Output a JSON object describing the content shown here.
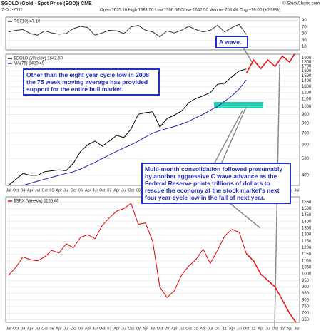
{
  "header": {
    "title": "$GOLD (Gold - Spot Price (EOD)) CME",
    "date": "7-Oct-2011",
    "quote": "Open 1625.10  High 1681.50  Low 1596.60  Close 1642.50  Volume 708.4K  Chg +16.00 (+0.98%)",
    "credit": "© StockCharts.com"
  },
  "chart_data": [
    {
      "type": "line",
      "ylim": [
        0,
        100
      ],
      "yticks": [
        10,
        30,
        50,
        70,
        90
      ],
      "grid": true,
      "series": [
        {
          "name": "RSI(10) 47.10",
          "color": "#333333",
          "values": [
            55,
            60,
            62,
            50,
            45,
            58,
            52,
            48,
            50,
            65,
            72,
            68,
            45,
            52,
            60,
            58,
            50,
            70,
            75,
            60,
            55,
            40,
            58,
            52,
            60,
            72,
            62,
            55,
            60,
            75,
            55,
            68,
            78,
            47.1,
            null,
            null,
            null,
            null,
            null,
            null,
            null
          ]
        }
      ]
    },
    {
      "type": "line",
      "log": true,
      "ylim": [
        350,
        2000
      ],
      "yticks": [
        400,
        500,
        600,
        700,
        800,
        900,
        1000,
        1100,
        1200,
        1300,
        1400,
        1500,
        1600,
        1700,
        1800,
        1900
      ],
      "grid": true,
      "categories": [
        "Jul",
        "Oct",
        "04",
        "Apr",
        "Jul",
        "Oct",
        "05",
        "Apr",
        "Jul",
        "Oct",
        "06",
        "Apr",
        "Jul",
        "Oct",
        "07",
        "Apr",
        "Jul",
        "Oct",
        "08",
        "Apr",
        "Jul",
        "Oct",
        "09",
        "Apr",
        "Jul",
        "Oct",
        "10",
        "Apr",
        "Jul",
        "Oct",
        "11",
        "Apr",
        "Jul",
        "Oct",
        "12",
        "Apr",
        "Jul",
        "Oct",
        "13",
        "Apr",
        "Jul"
      ],
      "series": [
        {
          "name": "$GOLD (Weekly) 1642.50",
          "color": "#000000",
          "values": [
            350,
            380,
            410,
            400,
            400,
            420,
            425,
            430,
            425,
            470,
            550,
            600,
            630,
            590,
            630,
            680,
            660,
            740,
            900,
            920,
            930,
            760,
            850,
            890,
            940,
            1050,
            1110,
            1150,
            1200,
            1340,
            1360,
            1480,
            1600,
            1642.5,
            null,
            null,
            null,
            null,
            null,
            null,
            null
          ]
        },
        {
          "name": "MA(75) 1420.49",
          "color": "#1f1fa8",
          "values": [
            330,
            340,
            350,
            360,
            370,
            380,
            390,
            400,
            410,
            420,
            435,
            455,
            475,
            500,
            525,
            550,
            575,
            600,
            630,
            665,
            700,
            725,
            745,
            765,
            790,
            820,
            860,
            900,
            950,
            1000,
            1070,
            1150,
            1260,
            1420.49,
            null,
            null,
            null,
            null,
            null,
            null,
            null
          ]
        },
        {
          "color": "#ee1111",
          "values": [
            null,
            null,
            null,
            null,
            null,
            null,
            null,
            null,
            null,
            null,
            null,
            null,
            null,
            null,
            null,
            null,
            null,
            null,
            null,
            null,
            null,
            null,
            null,
            null,
            null,
            null,
            null,
            null,
            null,
            null,
            null,
            null,
            null,
            1550,
            1850,
            1650,
            1850,
            1700,
            1950,
            1800,
            2100
          ]
        }
      ],
      "annotations": [
        "A wave.",
        "Other than the eight year cycle low in 2008 the 75 week moving average has provided support for the entire bull market.",
        "Multi-month consolidation followed presumably by another aggressive C wave advance as the Federal Reserve prints trillions of dollars to rescue the economy at the stock market's next four year cycle low in the fall of next year."
      ]
    },
    {
      "type": "line",
      "ylim": [
        630,
        1590
      ],
      "yticks": [
        650,
        700,
        750,
        800,
        850,
        900,
        950,
        1000,
        1050,
        1100,
        1150,
        1200,
        1250,
        1300,
        1350,
        1400,
        1450,
        1500,
        1550
      ],
      "grid": true,
      "categories": [
        "Jul",
        "Oct",
        "04",
        "Apr",
        "Jul",
        "Oct",
        "05",
        "Apr",
        "Jul",
        "Oct",
        "06",
        "Apr",
        "Jul",
        "Oct",
        "07",
        "Apr",
        "Jul",
        "Oct",
        "08",
        "Apr",
        "Jul",
        "Oct",
        "09",
        "Apr",
        "Jul",
        "Oct",
        "10",
        "Apr",
        "Jul",
        "Oct",
        "11",
        "Apr",
        "Jul",
        "Oct",
        "12",
        "Apr",
        "Jul",
        "Oct",
        "13",
        "Apr",
        "Jul"
      ],
      "series": [
        {
          "name": "$SPX (Weekly) 1155.46",
          "color": "#e00000",
          "values": [
            990,
            1050,
            1130,
            1110,
            1100,
            1130,
            1180,
            1160,
            1230,
            1200,
            1280,
            1300,
            1270,
            1370,
            1430,
            1480,
            1500,
            1540,
            1380,
            1390,
            1250,
            900,
            820,
            870,
            990,
            1060,
            1110,
            1190,
            1080,
            1180,
            1290,
            1340,
            1320,
            1155.46,
            null,
            null,
            null,
            null,
            null,
            null,
            null
          ]
        },
        {
          "color": "#ee1111",
          "values": [
            null,
            null,
            null,
            null,
            null,
            null,
            null,
            null,
            null,
            null,
            null,
            null,
            null,
            null,
            null,
            null,
            null,
            null,
            null,
            null,
            null,
            null,
            null,
            null,
            null,
            null,
            null,
            null,
            null,
            null,
            null,
            null,
            null,
            1155.46,
            1100,
            1000,
            950,
            900,
            800,
            700,
            620
          ]
        }
      ]
    }
  ]
}
